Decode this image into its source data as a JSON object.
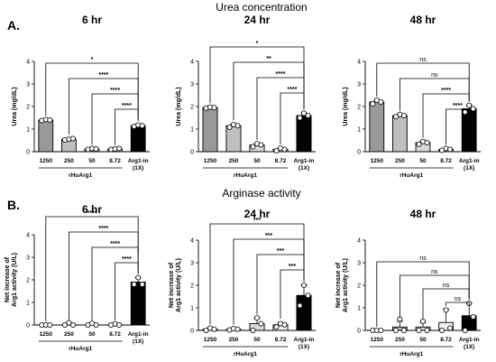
{
  "figure": {
    "sections": [
      {
        "letter": "A.",
        "title": "Urea concentration"
      },
      {
        "letter": "B.",
        "title": "Arginase activity"
      }
    ]
  },
  "chart_data": [
    {
      "type": "bar",
      "section": "A.",
      "title": "6 hr",
      "ylabel": "Urea (mg/dL)",
      "ylim": [
        0,
        4
      ],
      "yticks": [
        0,
        1,
        2,
        3,
        4
      ],
      "categories": [
        "1250",
        "250",
        "50",
        "8.72",
        "Arg1-in (1X)"
      ],
      "group_label": "rHuArg1",
      "bar_colors": [
        "#999999",
        "#bfbfbf",
        "#d9d9d9",
        "#efefef",
        "#000000"
      ],
      "values": [
        1.4,
        0.55,
        0.12,
        0.12,
        1.15
      ],
      "errors": [
        0.03,
        0.05,
        0.02,
        0.02,
        0.06
      ],
      "points": [
        [
          1.38,
          1.42,
          1.4
        ],
        [
          0.52,
          0.55,
          0.58
        ],
        [
          0.1,
          0.14,
          0.12
        ],
        [
          0.1,
          0.12,
          0.14
        ],
        [
          1.12,
          1.18,
          1.15
        ]
      ],
      "comparisons": [
        {
          "from": "1250",
          "to": "Arg1-in (1X)",
          "label": "*"
        },
        {
          "from": "250",
          "to": "Arg1-in (1X)",
          "label": "****"
        },
        {
          "from": "50",
          "to": "Arg1-in (1X)",
          "label": "****"
        },
        {
          "from": "8.72",
          "to": "Arg1-in (1X)",
          "label": "****"
        }
      ]
    },
    {
      "type": "bar",
      "section": "A.",
      "title": "24 hr",
      "ylabel": "Urea (mg/dL)",
      "ylim": [
        0,
        4
      ],
      "yticks": [
        0,
        1,
        2,
        3,
        4
      ],
      "categories": [
        "1250",
        "250",
        "50",
        "8.72",
        "Arg1-in (1X)"
      ],
      "group_label": "rHuArg1",
      "bar_colors": [
        "#999999",
        "#bfbfbf",
        "#d9d9d9",
        "#efefef",
        "#000000"
      ],
      "values": [
        1.95,
        1.15,
        0.3,
        0.1,
        1.6
      ],
      "errors": [
        0.03,
        0.08,
        0.06,
        0.06,
        0.1
      ],
      "points": [
        [
          1.93,
          1.97,
          1.95
        ],
        [
          1.08,
          1.2,
          1.15
        ],
        [
          0.22,
          0.35,
          0.3
        ],
        [
          0.04,
          0.15,
          0.1
        ],
        [
          1.5,
          1.7,
          1.6
        ]
      ],
      "comparisons": [
        {
          "from": "1250",
          "to": "Arg1-in (1X)",
          "label": "*"
        },
        {
          "from": "250",
          "to": "Arg1-in (1X)",
          "label": "**"
        },
        {
          "from": "50",
          "to": "Arg1-in (1X)",
          "label": "****"
        },
        {
          "from": "8.72",
          "to": "Arg1-in (1X)",
          "label": "****"
        }
      ]
    },
    {
      "type": "bar",
      "section": "A.",
      "title": "48 hr",
      "ylabel": "Urea (mg/dL)",
      "ylim": [
        0,
        4
      ],
      "yticks": [
        0,
        1,
        2,
        3,
        4
      ],
      "categories": [
        "1250",
        "250",
        "50",
        "8.72",
        "Arg1-in (1X)"
      ],
      "group_label": "rHuArg1",
      "bar_colors": [
        "#999999",
        "#bfbfbf",
        "#d9d9d9",
        "#efefef",
        "#000000"
      ],
      "values": [
        2.2,
        1.6,
        0.4,
        0.1,
        1.9
      ],
      "errors": [
        0.08,
        0.05,
        0.06,
        0.04,
        0.15
      ],
      "points": [
        [
          2.12,
          2.28,
          2.2
        ],
        [
          1.55,
          1.65,
          1.6
        ],
        [
          0.33,
          0.45,
          0.4
        ],
        [
          0.06,
          0.14,
          0.1
        ],
        [
          1.75,
          2.05,
          1.9
        ]
      ],
      "comparisons": [
        {
          "from": "1250",
          "to": "Arg1-in (1X)",
          "label": "ns"
        },
        {
          "from": "250",
          "to": "Arg1-in (1X)",
          "label": "ns"
        },
        {
          "from": "50",
          "to": "Arg1-in (1X)",
          "label": "****"
        },
        {
          "from": "8.72",
          "to": "Arg1-in (1X)",
          "label": "****"
        }
      ]
    },
    {
      "type": "bar",
      "section": "B.",
      "title": "6 hr",
      "ylabel": "Net increase of Arg1 activity (U/L)",
      "ylim": [
        0,
        4
      ],
      "yticks": [
        0,
        1,
        2,
        3,
        4
      ],
      "categories": [
        "1250",
        "250",
        "50",
        "8.72",
        "Arg1-in (1X)"
      ],
      "group_label": "rHuArg1",
      "bar_colors": [
        "#999999",
        "#bfbfbf",
        "#d9d9d9",
        "#efefef",
        "#000000"
      ],
      "values": [
        0.0,
        0.0,
        0.0,
        0.0,
        1.9
      ],
      "errors": [
        0.0,
        0.06,
        0.05,
        0.04,
        0.2
      ],
      "points": [
        [
          0.0,
          0.0,
          0.0
        ],
        [
          0.0,
          0.1,
          0.0
        ],
        [
          0.0,
          0.07,
          0.0
        ],
        [
          0.0,
          0.05,
          0.0
        ],
        [
          1.8,
          2.1,
          1.8
        ]
      ],
      "comparisons": [
        {
          "from": "1250",
          "to": "Arg1-in (1X)",
          "label": "****"
        },
        {
          "from": "250",
          "to": "Arg1-in (1X)",
          "label": "****"
        },
        {
          "from": "50",
          "to": "Arg1-in (1X)",
          "label": "****"
        },
        {
          "from": "8.72",
          "to": "Arg1-in (1X)",
          "label": "****"
        }
      ]
    },
    {
      "type": "bar",
      "section": "B.",
      "title": "24 hr",
      "ylabel": "Net increase of Arg1 activity (U/L)",
      "ylim": [
        0,
        4
      ],
      "yticks": [
        0,
        1,
        2,
        3,
        4
      ],
      "categories": [
        "1250",
        "250",
        "50",
        "8.72",
        "Arg1-in (1X)"
      ],
      "group_label": "rHuArg1",
      "bar_colors": [
        "#999999",
        "#bfbfbf",
        "#d9d9d9",
        "#efefef",
        "#000000"
      ],
      "values": [
        0.05,
        0.05,
        0.3,
        0.25,
        1.55
      ],
      "errors": [
        0.06,
        0.05,
        0.25,
        0.1,
        0.45
      ],
      "points": [
        [
          0.0,
          0.1,
          0.05
        ],
        [
          0.02,
          0.08,
          0.05
        ],
        [
          0.0,
          0.55,
          0.3
        ],
        [
          0.15,
          0.3,
          0.25
        ],
        [
          1.1,
          2.0,
          1.55
        ]
      ],
      "comparisons": [
        {
          "from": "1250",
          "to": "Arg1-in (1X)",
          "label": "***"
        },
        {
          "from": "250",
          "to": "Arg1-in (1X)",
          "label": "***"
        },
        {
          "from": "50",
          "to": "Arg1-in (1X)",
          "label": "***"
        },
        {
          "from": "8.72",
          "to": "Arg1-in (1X)",
          "label": "***"
        }
      ]
    },
    {
      "type": "bar",
      "section": "B.",
      "title": "48 hr",
      "ylabel": "Net increase of Arg1 activity (U/L)",
      "ylim": [
        0,
        4
      ],
      "yticks": [
        0,
        1,
        2,
        3,
        4
      ],
      "categories": [
        "1250",
        "250",
        "50",
        "8.72",
        "Arg1-in (1X)"
      ],
      "group_label": "rHuArg1",
      "bar_colors": [
        "#999999",
        "#bfbfbf",
        "#d9d9d9",
        "#efefef",
        "#000000"
      ],
      "values": [
        0.0,
        0.15,
        0.15,
        0.35,
        0.65
      ],
      "errors": [
        0.0,
        0.25,
        0.2,
        0.6,
        0.55
      ],
      "points": [
        [
          0.0,
          0.0,
          0.0
        ],
        [
          0.0,
          0.5,
          0.0
        ],
        [
          0.0,
          0.4,
          0.0
        ],
        [
          0.0,
          0.9,
          0.1
        ],
        [
          0.0,
          1.2,
          0.6
        ]
      ],
      "comparisons": [
        {
          "from": "1250",
          "to": "Arg1-in (1X)",
          "label": "ns"
        },
        {
          "from": "250",
          "to": "Arg1-in (1X)",
          "label": "ns"
        },
        {
          "from": "50",
          "to": "Arg1-in (1X)",
          "label": "ns"
        },
        {
          "from": "8.72",
          "to": "Arg1-in (1X)",
          "label": "ns"
        }
      ]
    }
  ]
}
